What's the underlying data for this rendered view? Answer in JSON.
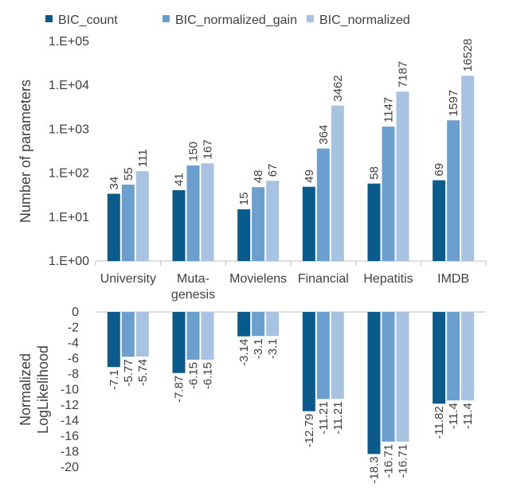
{
  "colors": {
    "BIC_count": "#0b5a8c",
    "BIC_normalized_gain": "#6a9fcf",
    "BIC_normalized": "#a8c2e2",
    "axis": "#bfbfbf",
    "text": "#404040"
  },
  "legend": {
    "items": [
      "BIC_count",
      "BIC_normalized_gain",
      "BIC_normalized"
    ],
    "position": "top"
  },
  "categories": [
    "University",
    "Muta-\ngenesis",
    "Movielens",
    "Financial",
    "Hepatitis",
    "IMDB"
  ],
  "chart_data": [
    {
      "type": "bar",
      "scale": "log10",
      "ylabel": "Number of parameters",
      "ylim": [
        1,
        100000
      ],
      "yticks": [
        "1.E+00",
        "1.E+01",
        "1.E+02",
        "1.E+03",
        "1.E+04",
        "1.E+05"
      ],
      "categories": [
        "University",
        "Muta-\ngenesis",
        "Movielens",
        "Financial",
        "Hepatitis",
        "IMDB"
      ],
      "series": [
        {
          "name": "BIC_count",
          "values": [
            34,
            41,
            15,
            49,
            58,
            69
          ]
        },
        {
          "name": "BIC_normalized_gain",
          "values": [
            55,
            150,
            48,
            364,
            1147,
            1597
          ]
        },
        {
          "name": "BIC_normalized",
          "values": [
            111,
            167,
            67,
            3462,
            7187,
            16528
          ]
        }
      ],
      "data_labels": true
    },
    {
      "type": "bar",
      "ylabel": "Normalized\nLogLikelihood",
      "ylim": [
        -20,
        0
      ],
      "yticks": [
        "0",
        "-2",
        "-4",
        "-6",
        "-8",
        "-10",
        "-12",
        "-14",
        "-16",
        "-18",
        "-20"
      ],
      "categories": [
        "University",
        "Muta-\ngenesis",
        "Movielens",
        "Financial",
        "Hepatitis",
        "IMDB"
      ],
      "series": [
        {
          "name": "BIC_count",
          "values": [
            -7.1,
            -7.87,
            -3.14,
            -12.79,
            -18.3,
            -11.82
          ]
        },
        {
          "name": "BIC_normalized_gain",
          "values": [
            -5.77,
            -6.15,
            -3.1,
            -11.21,
            -16.71,
            -11.4
          ]
        },
        {
          "name": "BIC_normalized",
          "values": [
            -5.74,
            -6.15,
            -3.1,
            -11.21,
            -16.71,
            -11.4
          ]
        }
      ],
      "data_labels": true
    }
  ]
}
